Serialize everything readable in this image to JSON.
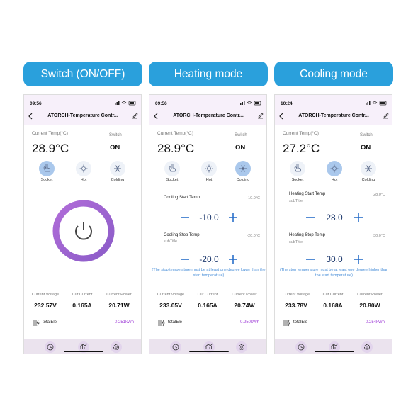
{
  "labels": [
    "Switch (ON/OFF)",
    "Heating mode",
    "Cooling mode"
  ],
  "screens": [
    {
      "time": "09:56",
      "title": "ATORCH-Temperature Contr...",
      "temp_label": "Current Temp(°C)",
      "temp": "28.9°C",
      "switch_label": "Switch",
      "switch_state": "ON",
      "modes": [
        "Socket",
        "Hot",
        "Colding"
      ],
      "active_mode": 0,
      "metrics": [
        {
          "label": "Current Voltage",
          "value": "232.57V"
        },
        {
          "label": "Cur Current",
          "value": "0.165A"
        },
        {
          "label": "Current Power",
          "value": "20.71W"
        }
      ],
      "total_label": "totalEle",
      "total_value": "0.251kWh"
    },
    {
      "time": "09:56",
      "title": "ATORCH-Temperature Contr...",
      "temp_label": "Current Temp(°C)",
      "temp": "28.9°C",
      "switch_label": "Switch",
      "switch_state": "ON",
      "modes": [
        "Socket",
        "Hot",
        "Colding"
      ],
      "active_mode": 2,
      "settings": [
        {
          "label": "Cooling Start Temp",
          "value": "-10.0°C",
          "control": "-10.0"
        },
        {
          "label": "Cooling Stop Temp",
          "subtitle": "subTitle",
          "value": "-20.0°C",
          "control": "-20.0"
        }
      ],
      "note": "(The stop temperature must be at least one degree lower than the start temperature)",
      "metrics": [
        {
          "label": "Current Voltage",
          "value": "233.05V"
        },
        {
          "label": "Cur Current",
          "value": "0.165A"
        },
        {
          "label": "Current Power",
          "value": "20.74W"
        }
      ],
      "total_label": "totalEle",
      "total_value": "0.250kWh"
    },
    {
      "time": "10:24",
      "title": "ATORCH-Temperature Contr...",
      "temp_label": "Current Temp(°C)",
      "temp": "27.2°C",
      "switch_label": "Switch",
      "switch_state": "ON",
      "modes": [
        "Socket",
        "Hot",
        "Colding"
      ],
      "active_mode": 1,
      "settings": [
        {
          "label": "Heating Start Temp",
          "subtitle": "subTitle",
          "value": "28.0°C",
          "control": "28.0"
        },
        {
          "label": "Heating Stop Temp",
          "subtitle": "subTitle",
          "value": "30.0°C",
          "control": "30.0"
        }
      ],
      "note": "(The stop temperature must be at least one degree higher than the start temperature)",
      "metrics": [
        {
          "label": "Current Voltage",
          "value": "233.78V"
        },
        {
          "label": "Cur Current",
          "value": "0.168A"
        },
        {
          "label": "Current Power",
          "value": "20.80W"
        }
      ],
      "total_label": "totalEle",
      "total_value": "0.254kWh"
    }
  ]
}
